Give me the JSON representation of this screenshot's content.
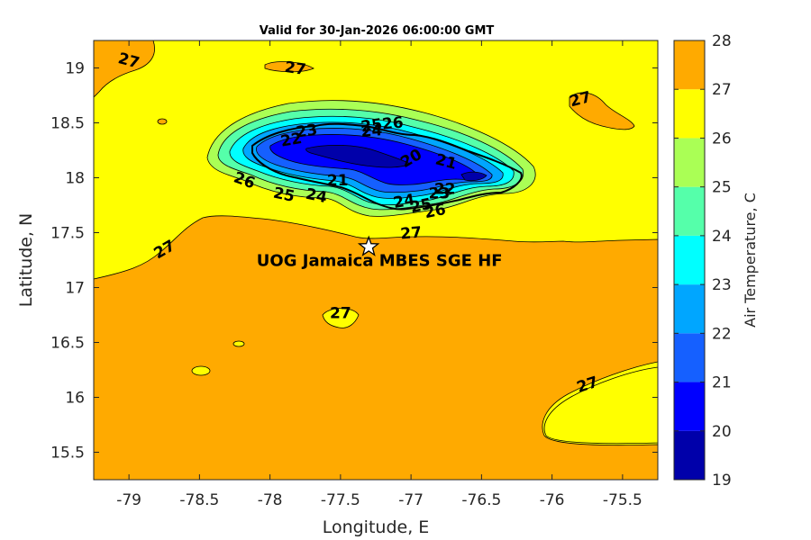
{
  "title": "Valid for 30-Jan-2026 06:00:00 GMT",
  "x_axis": {
    "label": "Longitude, E",
    "range": [
      -79.25,
      -75.25
    ],
    "ticks": [
      -79,
      -78.5,
      -78,
      -77.5,
      -77,
      -76.5,
      -76,
      -75.5
    ],
    "tick_labels": [
      "-79",
      "-78.5",
      "-78",
      "-77.5",
      "-77",
      "-76.5",
      "-76",
      "-75.5"
    ]
  },
  "y_axis": {
    "label": "Latitude, N",
    "range": [
      15.25,
      19.25
    ],
    "ticks": [
      15.5,
      16,
      16.5,
      17,
      17.5,
      18,
      18.5,
      19
    ],
    "tick_labels": [
      "15.5",
      "16",
      "16.5",
      "17",
      "17.5",
      "18",
      "18.5",
      "19"
    ]
  },
  "colorbar": {
    "label": "Air Temperature, C",
    "levels": [
      19,
      20,
      21,
      22,
      23,
      24,
      25,
      26,
      27,
      28
    ],
    "level_labels": [
      "19",
      "20",
      "21",
      "22",
      "23",
      "24",
      "25",
      "26",
      "27",
      "28"
    ],
    "colors": [
      "#0000aa",
      "#0000ff",
      "#1560ff",
      "#00a6ff",
      "#00ffff",
      "#55ffaa",
      "#aaff55",
      "#ffff00",
      "#ffaa00",
      "#ff5500"
    ]
  },
  "station": {
    "name": "UOG Jamaica MBES SGE HF",
    "lon": -77.3,
    "lat": 17.37,
    "marker": "star-icon"
  },
  "contour_labels": [
    {
      "text": "27",
      "lon": -79.0,
      "lat": 19.07,
      "angle": 15
    },
    {
      "text": "27",
      "lon": -77.82,
      "lat": 19.0,
      "angle": 8
    },
    {
      "text": "27",
      "lon": -75.8,
      "lat": 18.72,
      "angle": -15
    },
    {
      "text": "27",
      "lon": -78.75,
      "lat": 17.35,
      "angle": -30
    },
    {
      "text": "27",
      "lon": -77.0,
      "lat": 17.5,
      "angle": -5
    },
    {
      "text": "27",
      "lon": -77.5,
      "lat": 16.77,
      "angle": 0
    },
    {
      "text": "27",
      "lon": -75.75,
      "lat": 16.12,
      "angle": -18
    },
    {
      "text": "26",
      "lon": -78.18,
      "lat": 17.98,
      "angle": 20
    },
    {
      "text": "26",
      "lon": -77.13,
      "lat": 18.5,
      "angle": -5
    },
    {
      "text": "26",
      "lon": -76.83,
      "lat": 17.7,
      "angle": -12
    },
    {
      "text": "25",
      "lon": -77.28,
      "lat": 18.48,
      "angle": -8
    },
    {
      "text": "25",
      "lon": -77.9,
      "lat": 17.85,
      "angle": 12
    },
    {
      "text": "25",
      "lon": -76.93,
      "lat": 17.75,
      "angle": -12
    },
    {
      "text": "24",
      "lon": -77.28,
      "lat": 18.43,
      "angle": -5
    },
    {
      "text": "24",
      "lon": -77.67,
      "lat": 17.84,
      "angle": 12
    },
    {
      "text": "24",
      "lon": -77.05,
      "lat": 17.79,
      "angle": -10
    },
    {
      "text": "23",
      "lon": -77.74,
      "lat": 18.43,
      "angle": -8
    },
    {
      "text": "23",
      "lon": -76.8,
      "lat": 17.86,
      "angle": 0
    },
    {
      "text": "22",
      "lon": -77.85,
      "lat": 18.35,
      "angle": -10
    },
    {
      "text": "22",
      "lon": -76.76,
      "lat": 17.9,
      "angle": 0
    },
    {
      "text": "21",
      "lon": -77.52,
      "lat": 17.98,
      "angle": 0
    },
    {
      "text": "21",
      "lon": -76.75,
      "lat": 18.15,
      "angle": 15
    },
    {
      "text": "20",
      "lon": -77.0,
      "lat": 18.18,
      "angle": -30
    }
  ]
}
